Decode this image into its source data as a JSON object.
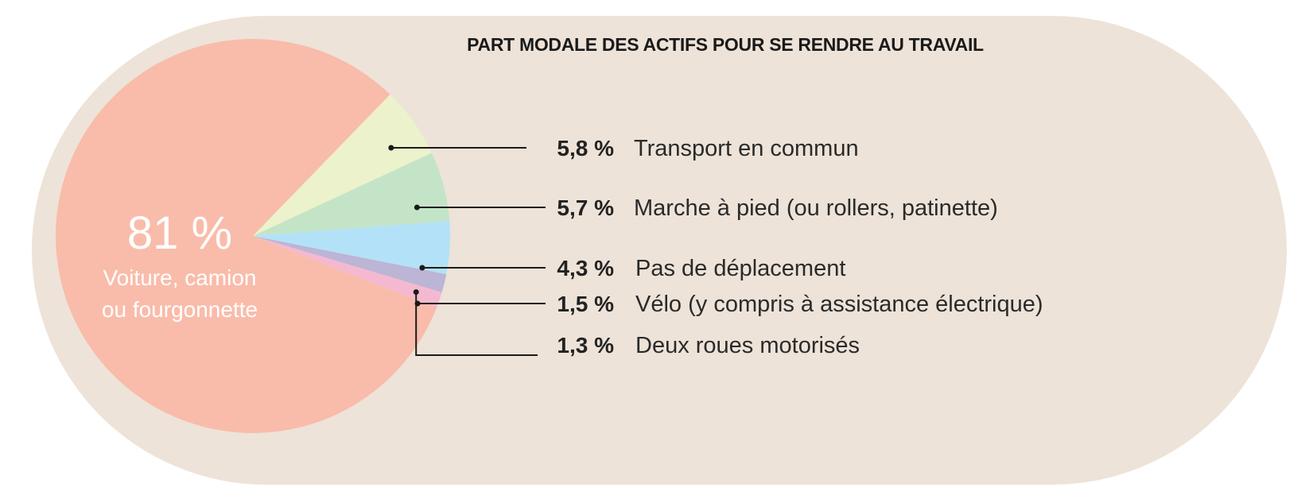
{
  "chart_data": {
    "type": "pie",
    "title": "PART MODALE DES ACTIFS POUR SE RENDRE AU TRAVAIL",
    "slices": [
      {
        "label": "Voiture, camion ou fourgonnette",
        "label_lines": [
          "Voiture, camion",
          "ou fourgonnette"
        ],
        "value": 81,
        "value_text": "81 %",
        "color": "#f9bcaa"
      },
      {
        "label": "Transport en commun",
        "value": 5.8,
        "value_text": "5,8 %",
        "color": "#ecf2cb"
      },
      {
        "label": "Marche à pied (ou rollers, patinette)",
        "value": 5.7,
        "value_text": "5,7 %",
        "color": "#c4e4c8"
      },
      {
        "label": "Pas de déplacement",
        "value": 4.3,
        "value_text": "4,3 %",
        "color": "#b3e2f8"
      },
      {
        "label": "Vélo (y compris à assistance électrique)",
        "value": 1.5,
        "value_text": "1,5 %",
        "color": "#bcb5d5"
      },
      {
        "label": "Deux roues motorisés",
        "value": 1.3,
        "value_text": "1,3 %",
        "color": "#f4b9d0"
      }
    ],
    "legend": "right",
    "grid": false
  },
  "colors": {
    "panel_background": "#ede3d8",
    "text": "#222222",
    "leader_line": "#1a1a1a"
  }
}
